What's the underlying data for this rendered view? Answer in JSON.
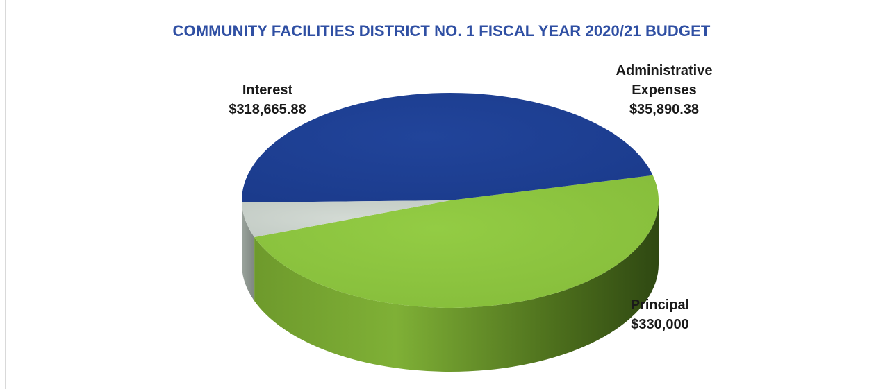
{
  "chart_data": {
    "type": "pie",
    "title": "COMMUNITY FACILITIES DISTRICT NO. 1 FISCAL YEAR 2020/21 BUDGET",
    "slices": [
      {
        "name": "Principal",
        "value": 330000,
        "value_label": "$330,000",
        "color": "#8dc63f"
      },
      {
        "name": "Interest",
        "value": 318665.88,
        "value_label": "$318,665.88",
        "color": "#1f3f93"
      },
      {
        "name": "Administrative Expenses",
        "name_lines": [
          "Administrative",
          "Expenses"
        ],
        "value": 35890.38,
        "value_label": "$35,890.38",
        "color": "#c9d1ca"
      }
    ],
    "legend": "none",
    "style": "3d"
  },
  "colors": {
    "title": "#2f4fa3",
    "label": "#1a1a1a"
  }
}
